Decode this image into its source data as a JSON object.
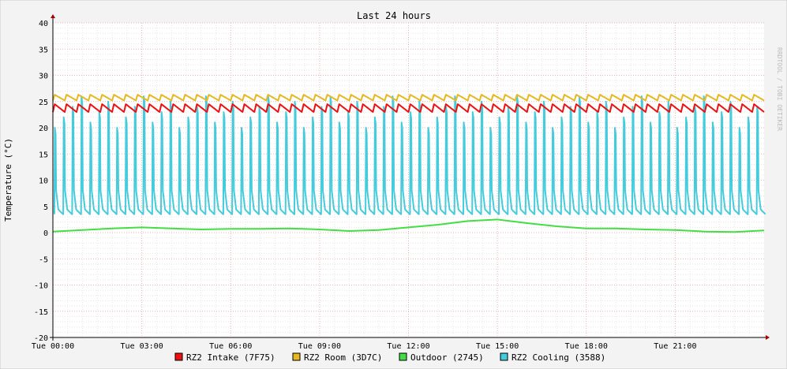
{
  "chart_data": {
    "type": "line",
    "title": "Last 24 hours",
    "ylabel": "Temperature (°C)",
    "xlabel": "",
    "watermark": "RRDTOOL / TOBI OETIKER",
    "ylim": [
      -20,
      40
    ],
    "y_ticks": [
      40,
      35,
      30,
      25,
      20,
      15,
      10,
      5,
      0,
      -5,
      -10,
      -15,
      -20
    ],
    "x_range_hours": [
      0,
      24
    ],
    "x_ticks": [
      {
        "hour": 0,
        "label": "Tue 00:00"
      },
      {
        "hour": 3,
        "label": "Tue 03:00"
      },
      {
        "hour": 6,
        "label": "Tue 06:00"
      },
      {
        "hour": 9,
        "label": "Tue 09:00"
      },
      {
        "hour": 12,
        "label": "Tue 12:00"
      },
      {
        "hour": 15,
        "label": "Tue 15:00"
      },
      {
        "hour": 18,
        "label": "Tue 18:00"
      },
      {
        "hour": 21,
        "label": "Tue 21:00"
      }
    ],
    "grid": true,
    "legend_position": "bottom",
    "series": [
      {
        "name": "RZ2 Intake (7F75)",
        "color": "#ee1111",
        "pattern": {
          "kind": "sawtooth",
          "period_h": 0.4,
          "low": 23.0,
          "high": 24.5
        }
      },
      {
        "name": "RZ2 Room (3D7C)",
        "color": "#e8b820",
        "pattern": {
          "kind": "sawtooth",
          "period_h": 0.4,
          "low": 25.2,
          "high": 26.3
        }
      },
      {
        "name": "Outdoor (2745)",
        "color": "#44dd44",
        "x": [
          0,
          1,
          2,
          3,
          4,
          5,
          6,
          7,
          8,
          9,
          10,
          11,
          12,
          13,
          14,
          15,
          16,
          17,
          18,
          19,
          20,
          21,
          22,
          23,
          24
        ],
        "values": [
          0.2,
          0.5,
          0.8,
          1.0,
          0.8,
          0.6,
          0.7,
          0.7,
          0.8,
          0.6,
          0.3,
          0.5,
          1.0,
          1.5,
          2.2,
          2.5,
          1.8,
          1.2,
          0.8,
          0.8,
          0.6,
          0.5,
          0.2,
          0.1,
          0.4
        ]
      },
      {
        "name": "RZ2 Cooling (3588)",
        "color": "#44ccdd",
        "pattern": {
          "kind": "spikes",
          "period_h": 0.3,
          "baseline": 3.5,
          "peak_min": 20,
          "peak_max": 26
        }
      }
    ]
  }
}
